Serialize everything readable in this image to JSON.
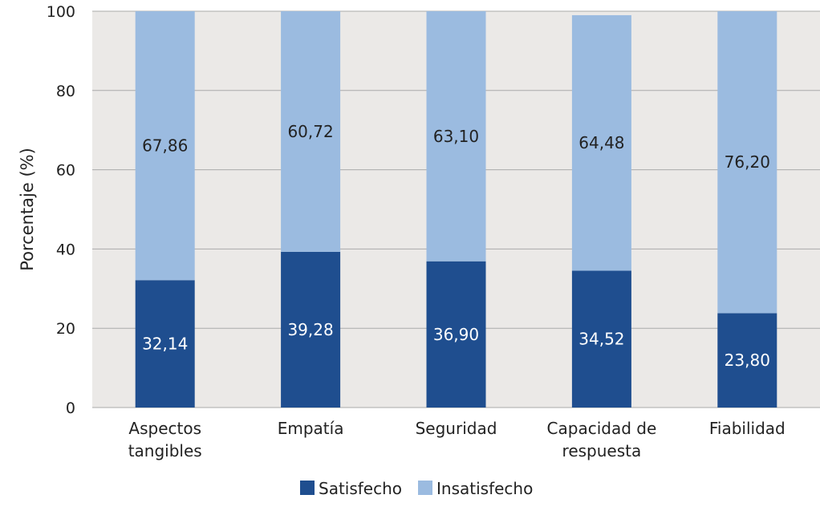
{
  "chart_data": {
    "type": "bar",
    "stacked": true,
    "ylabel": "Porcentaje (%)",
    "xlabel": "",
    "ylim": [
      0,
      100
    ],
    "yticks": [
      0,
      20,
      40,
      60,
      80,
      100
    ],
    "categories": [
      [
        "Aspectos",
        "tangibles"
      ],
      [
        "Empatía"
      ],
      [
        "Seguridad"
      ],
      [
        "Capacidad de",
        "respuesta"
      ],
      [
        "Fiabilidad"
      ]
    ],
    "series": [
      {
        "name": "Satisfecho",
        "color": "#1f4e8f",
        "label_color": "#ffffff",
        "values": [
          32.14,
          39.28,
          36.9,
          34.52,
          23.8
        ],
        "labels": [
          "32,14",
          "39,28",
          "36,90",
          "34,52",
          "23,80"
        ]
      },
      {
        "name": "Insatisfecho",
        "color": "#9bbbe0",
        "label_color": "#222222",
        "values": [
          67.86,
          60.72,
          63.1,
          64.48,
          76.2
        ],
        "labels": [
          "67,86",
          "60,72",
          "63,10",
          "64,48",
          "76,20"
        ]
      }
    ],
    "plot_background": "#ebe9e7",
    "gridlines": true,
    "legend_position": "bottom"
  }
}
